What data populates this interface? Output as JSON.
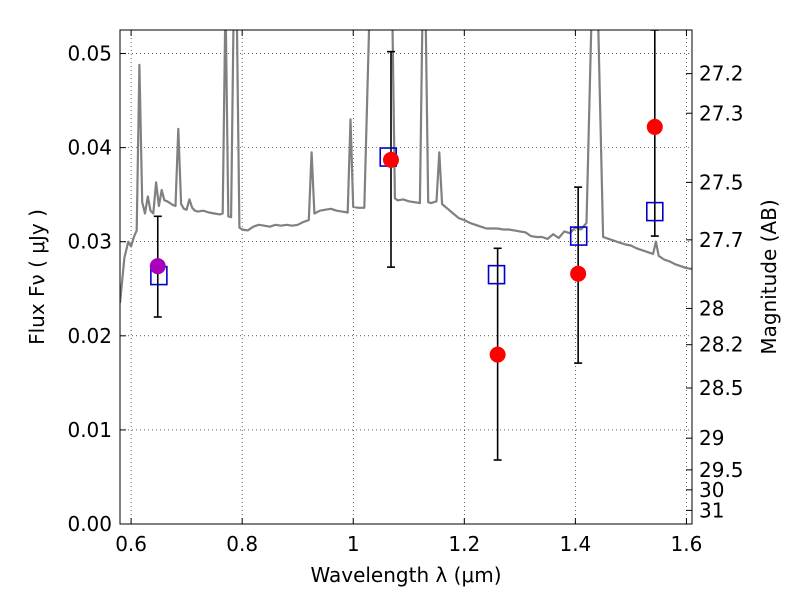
{
  "chart_data": {
    "type": "scatter",
    "xlabel": "Wavelength  λ (μm)",
    "ylabel": "Flux  Fν  ( μJy )",
    "y2label": "Magnitude (AB)",
    "xlim": [
      0.58,
      1.61
    ],
    "ylim": [
      0.0,
      0.0525
    ],
    "grid": true,
    "x_ticks": [
      0.6,
      0.8,
      1.0,
      1.2,
      1.4,
      1.6
    ],
    "x_tick_labels": [
      "0.6",
      "0.8",
      "1",
      "1.2",
      "1.4",
      "1.6"
    ],
    "y_ticks": [
      0.0,
      0.01,
      0.02,
      0.03,
      0.04,
      0.05
    ],
    "y_tick_labels": [
      "0.00",
      "0.01",
      "0.02",
      "0.03",
      "0.04",
      "0.05"
    ],
    "mag_ticks": [
      27.2,
      27.3,
      27.5,
      27.7,
      28,
      28.2,
      28.5,
      29,
      29.5,
      30,
      31
    ],
    "mag_tick_labels": [
      "27.2",
      "27.3",
      "27.5",
      "27.7",
      "28",
      "28.2",
      "28.5",
      "29",
      "29.5",
      "30",
      "31"
    ],
    "colors": {
      "observed": "#ff0000",
      "observed_first": "#aa00bb",
      "model": "#0000cc",
      "spectrum": "#808080",
      "errorbar": "#000000"
    },
    "observed": [
      {
        "x": 0.648,
        "y": 0.0274,
        "yerr_low": 0.022,
        "yerr_high": 0.0327
      },
      {
        "x": 1.068,
        "y": 0.0387,
        "yerr_low": 0.0273,
        "yerr_high": 0.0502
      },
      {
        "x": 1.26,
        "y": 0.018,
        "yerr_low": 0.0068,
        "yerr_high": 0.0293
      },
      {
        "x": 1.405,
        "y": 0.0266,
        "yerr_low": 0.0171,
        "yerr_high": 0.0358
      },
      {
        "x": 1.543,
        "y": 0.0422,
        "yerr_low": 0.0306,
        "yerr_high": 0.0525
      }
    ],
    "model_points": [
      {
        "x": 0.65,
        "y": 0.0264
      },
      {
        "x": 1.063,
        "y": 0.039
      },
      {
        "x": 1.258,
        "y": 0.0265
      },
      {
        "x": 1.406,
        "y": 0.0306
      },
      {
        "x": 1.543,
        "y": 0.0332
      }
    ],
    "spectrum": [
      [
        0.58,
        0.0235
      ],
      [
        0.588,
        0.0283
      ],
      [
        0.595,
        0.03
      ],
      [
        0.6,
        0.0295
      ],
      [
        0.605,
        0.0305
      ],
      [
        0.61,
        0.0312
      ],
      [
        0.615,
        0.0488
      ],
      [
        0.62,
        0.0342
      ],
      [
        0.625,
        0.033
      ],
      [
        0.63,
        0.0348
      ],
      [
        0.635,
        0.0333
      ],
      [
        0.64,
        0.033
      ],
      [
        0.645,
        0.0363
      ],
      [
        0.65,
        0.0338
      ],
      [
        0.655,
        0.0355
      ],
      [
        0.66,
        0.0344
      ],
      [
        0.665,
        0.0343
      ],
      [
        0.67,
        0.0341
      ],
      [
        0.675,
        0.0339
      ],
      [
        0.68,
        0.0338
      ],
      [
        0.685,
        0.042
      ],
      [
        0.69,
        0.034
      ],
      [
        0.695,
        0.0335
      ],
      [
        0.7,
        0.0334
      ],
      [
        0.705,
        0.0345
      ],
      [
        0.71,
        0.0336
      ],
      [
        0.715,
        0.0333
      ],
      [
        0.72,
        0.0332
      ],
      [
        0.73,
        0.0333
      ],
      [
        0.74,
        0.0331
      ],
      [
        0.75,
        0.033
      ],
      [
        0.76,
        0.0329
      ],
      [
        0.765,
        0.033
      ],
      [
        0.77,
        0.056
      ],
      [
        0.775,
        0.0327
      ],
      [
        0.78,
        0.0326
      ],
      [
        0.785,
        0.056
      ],
      [
        0.79,
        0.056
      ],
      [
        0.795,
        0.0315
      ],
      [
        0.8,
        0.0313
      ],
      [
        0.81,
        0.0312
      ],
      [
        0.82,
        0.0316
      ],
      [
        0.83,
        0.0318
      ],
      [
        0.84,
        0.0317
      ],
      [
        0.85,
        0.0316
      ],
      [
        0.86,
        0.0318
      ],
      [
        0.87,
        0.0317
      ],
      [
        0.88,
        0.0318
      ],
      [
        0.89,
        0.0317
      ],
      [
        0.9,
        0.0318
      ],
      [
        0.91,
        0.0321
      ],
      [
        0.92,
        0.0323
      ],
      [
        0.925,
        0.0395
      ],
      [
        0.93,
        0.033
      ],
      [
        0.94,
        0.0333
      ],
      [
        0.95,
        0.0334
      ],
      [
        0.96,
        0.0335
      ],
      [
        0.97,
        0.0333
      ],
      [
        0.98,
        0.0332
      ],
      [
        0.99,
        0.0331
      ],
      [
        0.995,
        0.043
      ],
      [
        1.0,
        0.0337
      ],
      [
        1.01,
        0.0336
      ],
      [
        1.02,
        0.0336
      ],
      [
        1.03,
        0.056
      ],
      [
        1.04,
        0.056
      ],
      [
        1.05,
        0.056
      ],
      [
        1.06,
        0.056
      ],
      [
        1.07,
        0.056
      ],
      [
        1.075,
        0.0346
      ],
      [
        1.08,
        0.0344
      ],
      [
        1.09,
        0.0345
      ],
      [
        1.1,
        0.0343
      ],
      [
        1.11,
        0.0342
      ],
      [
        1.12,
        0.0341
      ],
      [
        1.125,
        0.056
      ],
      [
        1.13,
        0.056
      ],
      [
        1.135,
        0.0342
      ],
      [
        1.14,
        0.0341
      ],
      [
        1.15,
        0.0343
      ],
      [
        1.155,
        0.0395
      ],
      [
        1.16,
        0.034
      ],
      [
        1.17,
        0.0335
      ],
      [
        1.18,
        0.033
      ],
      [
        1.19,
        0.0325
      ],
      [
        1.2,
        0.0323
      ],
      [
        1.21,
        0.032
      ],
      [
        1.22,
        0.0318
      ],
      [
        1.23,
        0.0316
      ],
      [
        1.24,
        0.0314
      ],
      [
        1.25,
        0.0314
      ],
      [
        1.26,
        0.0314
      ],
      [
        1.27,
        0.0313
      ],
      [
        1.28,
        0.0313
      ],
      [
        1.29,
        0.0312
      ],
      [
        1.3,
        0.0311
      ],
      [
        1.31,
        0.031
      ],
      [
        1.32,
        0.0306
      ],
      [
        1.33,
        0.0305
      ],
      [
        1.34,
        0.0305
      ],
      [
        1.35,
        0.0303
      ],
      [
        1.36,
        0.0308
      ],
      [
        1.37,
        0.0304
      ],
      [
        1.38,
        0.0311
      ],
      [
        1.39,
        0.0309
      ],
      [
        1.4,
        0.0315
      ],
      [
        1.41,
        0.0313
      ],
      [
        1.42,
        0.032
      ],
      [
        1.43,
        0.056
      ],
      [
        1.44,
        0.056
      ],
      [
        1.45,
        0.0305
      ],
      [
        1.46,
        0.0303
      ],
      [
        1.47,
        0.0301
      ],
      [
        1.48,
        0.0299
      ],
      [
        1.49,
        0.0297
      ],
      [
        1.5,
        0.0296
      ],
      [
        1.51,
        0.0293
      ],
      [
        1.52,
        0.0291
      ],
      [
        1.53,
        0.0289
      ],
      [
        1.54,
        0.0287
      ],
      [
        1.545,
        0.03
      ],
      [
        1.55,
        0.0285
      ],
      [
        1.56,
        0.0281
      ],
      [
        1.57,
        0.0279
      ],
      [
        1.58,
        0.0276
      ],
      [
        1.59,
        0.0274
      ],
      [
        1.6,
        0.0272
      ],
      [
        1.61,
        0.0271
      ]
    ]
  }
}
